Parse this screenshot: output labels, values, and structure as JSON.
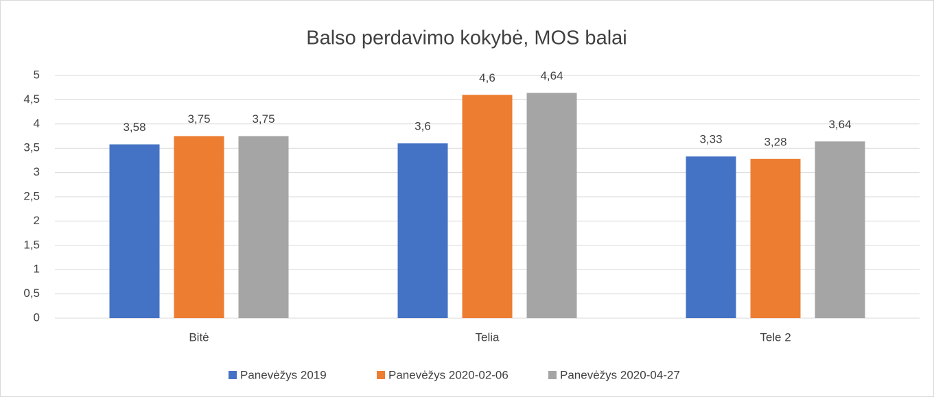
{
  "chart_data": {
    "type": "bar",
    "title": "Balso perdavimo kokybė, MOS balai",
    "categories": [
      "Bitė",
      "Telia",
      "Tele 2"
    ],
    "series": [
      {
        "name": "Panevėžys 2019",
        "color": "#4472c4",
        "values": [
          3.58,
          3.6,
          3.33
        ],
        "value_labels": [
          "3,58",
          "3,6",
          "3,33"
        ]
      },
      {
        "name": "Panevėžys 2020-02-06",
        "color": "#ed7d31",
        "values": [
          3.75,
          4.6,
          3.28
        ],
        "value_labels": [
          "3,75",
          "4,6",
          "3,28"
        ]
      },
      {
        "name": "Panevėžys 2020-04-27",
        "color": "#a5a5a5",
        "values": [
          3.75,
          4.64,
          3.64
        ],
        "value_labels": [
          "3,75",
          "4,64",
          "3,64"
        ]
      }
    ],
    "ylim": [
      0,
      5
    ],
    "yticks": [
      0,
      {
        "value": 0.5,
        "label": "0,5"
      },
      1,
      {
        "value": 1.5,
        "label": "1,5"
      },
      2,
      {
        "value": 2.5,
        "label": "2,5"
      },
      3,
      {
        "value": 3.5,
        "label": "3,5"
      },
      4,
      {
        "value": 4.5,
        "label": "4,5"
      },
      5
    ],
    "grid": true,
    "legend": "bottom"
  }
}
